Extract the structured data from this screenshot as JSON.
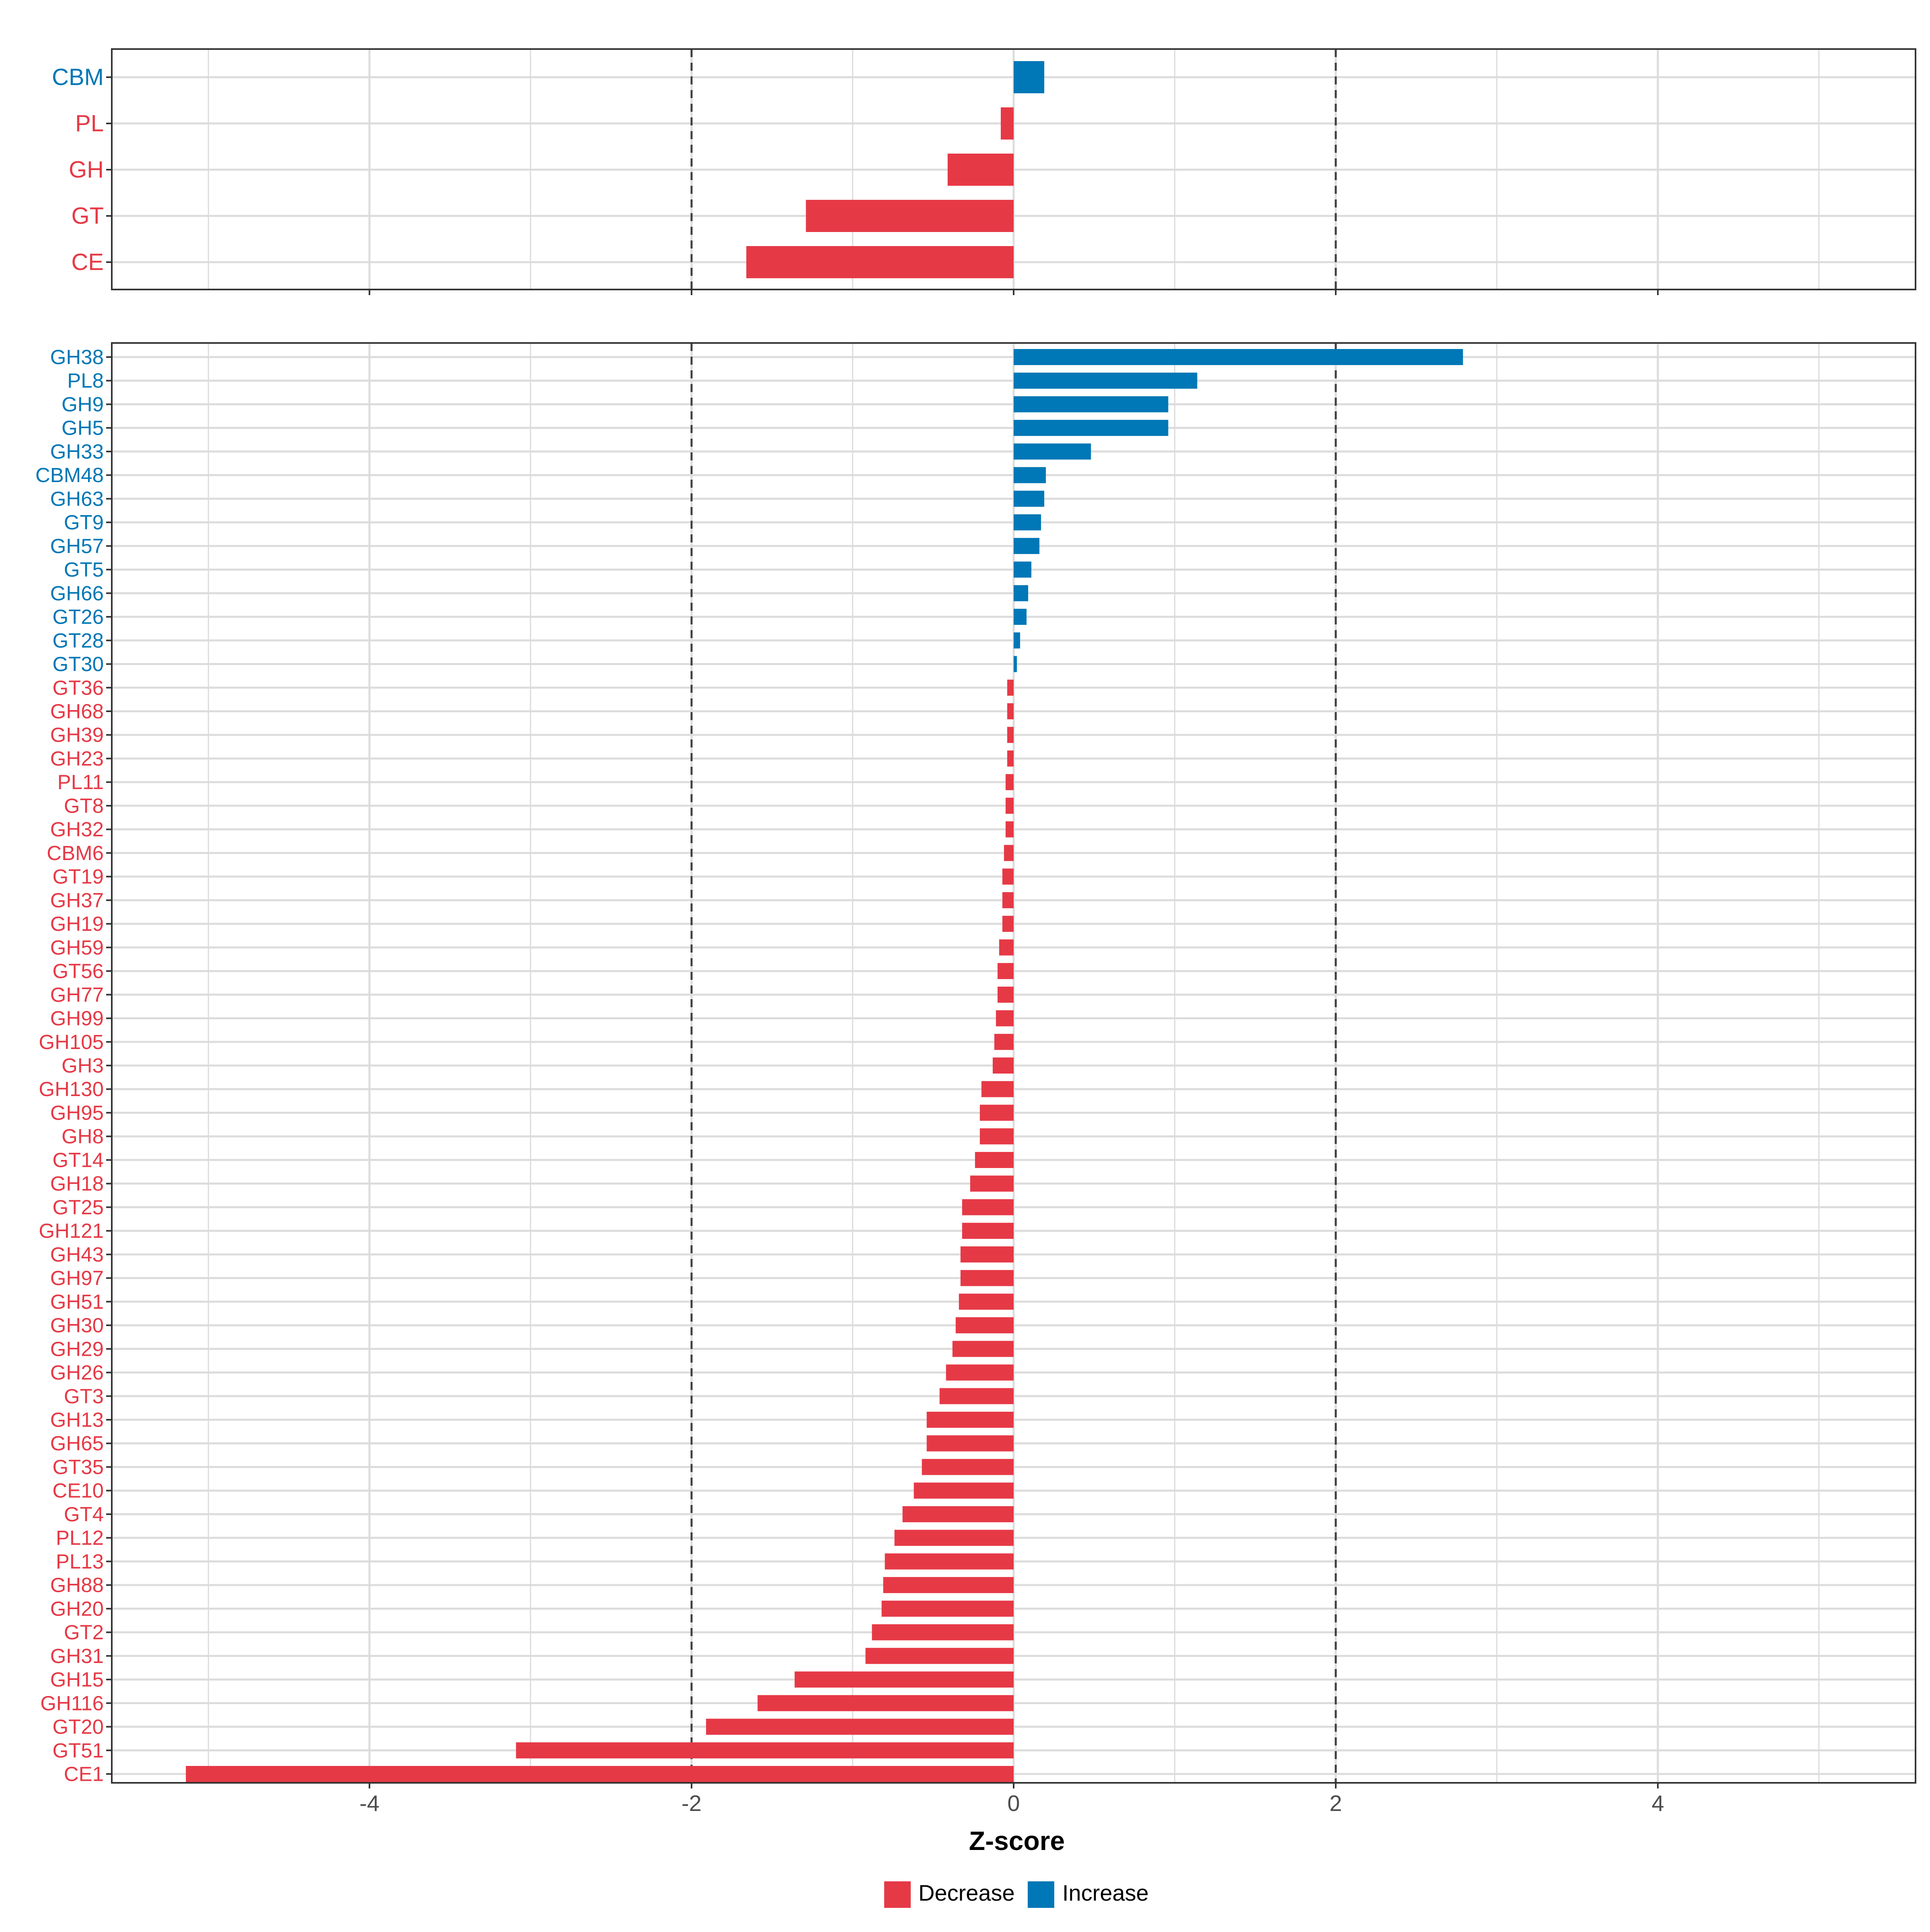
{
  "colors": {
    "decrease": "#e63946",
    "increase": "#0077b6",
    "grid": "#dcdcdc",
    "threshold": "#404040"
  },
  "legend": {
    "decrease_label": "Decrease",
    "increase_label": "Increase"
  },
  "chart_data": [
    {
      "type": "bar",
      "orientation": "horizontal",
      "panel": "class-level",
      "categories": [
        "CBM",
        "PL",
        "GH",
        "GT",
        "CE"
      ],
      "values": [
        0.19,
        -0.08,
        -0.41,
        -1.29,
        -1.66
      ],
      "xlim": [
        -5.6,
        5.6
      ],
      "x_ticks": [
        -4,
        -2,
        0,
        2,
        4
      ],
      "thresholds": [
        -2,
        2
      ],
      "grid": true
    },
    {
      "type": "bar",
      "orientation": "horizontal",
      "panel": "family-level",
      "xlabel": "Z-score",
      "categories": [
        "GH38",
        "PL8",
        "GH9",
        "GH5",
        "GH33",
        "CBM48",
        "GH63",
        "GT9",
        "GH57",
        "GT5",
        "GH66",
        "GT26",
        "GT28",
        "GT30",
        "GT36",
        "GH68",
        "GH39",
        "GH23",
        "PL11",
        "GT8",
        "GH32",
        "CBM6",
        "GT19",
        "GH37",
        "GH19",
        "GH59",
        "GT56",
        "GH77",
        "GH99",
        "GH105",
        "GH3",
        "GH130",
        "GH95",
        "GH8",
        "GT14",
        "GH18",
        "GT25",
        "GH121",
        "GH43",
        "GH97",
        "GH51",
        "GH30",
        "GH29",
        "GH26",
        "GT3",
        "GH13",
        "GH65",
        "GT35",
        "CE10",
        "GT4",
        "PL12",
        "PL13",
        "GH88",
        "GH20",
        "GT2",
        "GH31",
        "GH15",
        "GH116",
        "GT20",
        "GT51",
        "CE1"
      ],
      "values": [
        2.79,
        1.14,
        0.96,
        0.96,
        0.48,
        0.2,
        0.19,
        0.17,
        0.16,
        0.11,
        0.09,
        0.08,
        0.04,
        0.02,
        -0.04,
        -0.04,
        -0.04,
        -0.04,
        -0.05,
        -0.05,
        -0.05,
        -0.06,
        -0.07,
        -0.07,
        -0.07,
        -0.09,
        -0.1,
        -0.1,
        -0.11,
        -0.12,
        -0.13,
        -0.2,
        -0.21,
        -0.21,
        -0.24,
        -0.27,
        -0.32,
        -0.32,
        -0.33,
        -0.33,
        -0.34,
        -0.36,
        -0.38,
        -0.42,
        -0.46,
        -0.54,
        -0.54,
        -0.57,
        -0.62,
        -0.69,
        -0.74,
        -0.8,
        -0.81,
        -0.82,
        -0.88,
        -0.92,
        -1.36,
        -1.59,
        -1.91,
        -3.09,
        -5.14
      ],
      "xlim": [
        -5.6,
        5.6
      ],
      "x_ticks": [
        -4,
        -2,
        0,
        2,
        4
      ],
      "x_tick_labels": [
        "-4",
        "-2",
        "0",
        "2",
        "4"
      ],
      "thresholds": [
        -2,
        2
      ],
      "grid": true
    }
  ]
}
